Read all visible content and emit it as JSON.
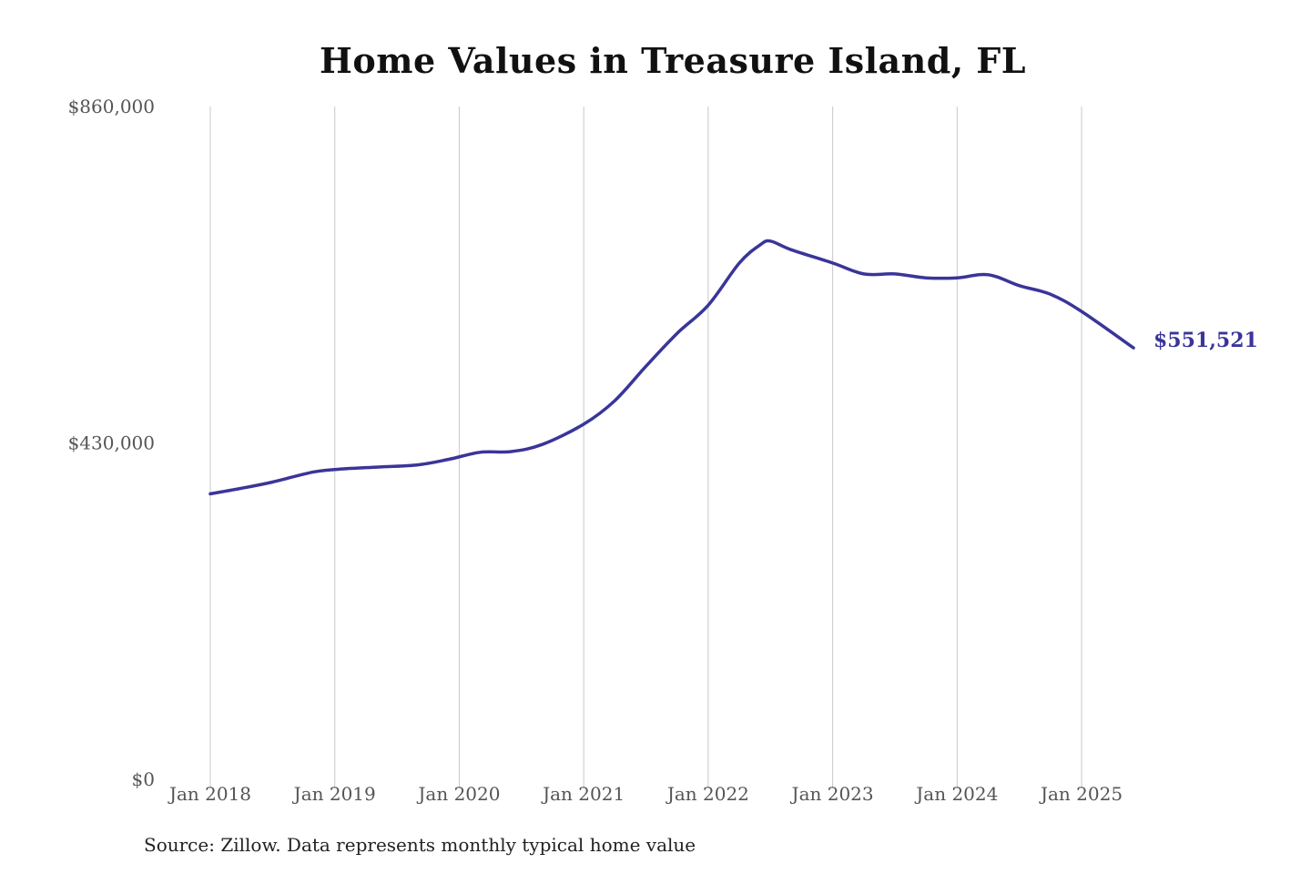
{
  "chart_data": {
    "type": "line",
    "title": "Home Values in Treasure Island, FL",
    "xlabel": "",
    "ylabel": "",
    "ylim": [
      0,
      860000
    ],
    "y_ticks": [
      {
        "value": 0,
        "label": "$0"
      },
      {
        "value": 430000,
        "label": "$430,000"
      },
      {
        "value": 860000,
        "label": "$860,000"
      }
    ],
    "x_range": [
      "2018-01",
      "2025-06"
    ],
    "x_ticks": [
      {
        "date": "2018-01",
        "label": "Jan 2018"
      },
      {
        "date": "2019-01",
        "label": "Jan 2019"
      },
      {
        "date": "2020-01",
        "label": "Jan 2020"
      },
      {
        "date": "2021-01",
        "label": "Jan 2021"
      },
      {
        "date": "2022-01",
        "label": "Jan 2022"
      },
      {
        "date": "2023-01",
        "label": "Jan 2023"
      },
      {
        "date": "2024-01",
        "label": "Jan 2024"
      },
      {
        "date": "2025-01",
        "label": "Jan 2025"
      }
    ],
    "grid": "vertical",
    "series": [
      {
        "color": "#3a3599",
        "end_label": "$551,521",
        "points": [
          {
            "x": "2018-01",
            "y": 365000
          },
          {
            "x": "2018-04",
            "y": 372000
          },
          {
            "x": "2018-07",
            "y": 380000
          },
          {
            "x": "2018-11",
            "y": 393000
          },
          {
            "x": "2019-02",
            "y": 397000
          },
          {
            "x": "2019-05",
            "y": 399000
          },
          {
            "x": "2019-09",
            "y": 402000
          },
          {
            "x": "2019-12",
            "y": 409000
          },
          {
            "x": "2020-03",
            "y": 418000
          },
          {
            "x": "2020-06",
            "y": 419000
          },
          {
            "x": "2020-09",
            "y": 428000
          },
          {
            "x": "2021-01",
            "y": 454000
          },
          {
            "x": "2021-04",
            "y": 484000
          },
          {
            "x": "2021-07",
            "y": 528000
          },
          {
            "x": "2021-10",
            "y": 570000
          },
          {
            "x": "2022-01",
            "y": 606000
          },
          {
            "x": "2022-04",
            "y": 660000
          },
          {
            "x": "2022-06",
            "y": 683000
          },
          {
            "x": "2022-07",
            "y": 688000
          },
          {
            "x": "2022-09",
            "y": 677000
          },
          {
            "x": "2023-01",
            "y": 660000
          },
          {
            "x": "2023-04",
            "y": 646000
          },
          {
            "x": "2023-07",
            "y": 646000
          },
          {
            "x": "2023-10",
            "y": 641000
          },
          {
            "x": "2024-01",
            "y": 641000
          },
          {
            "x": "2024-04",
            "y": 645000
          },
          {
            "x": "2024-07",
            "y": 631000
          },
          {
            "x": "2024-10",
            "y": 620000
          },
          {
            "x": "2025-01",
            "y": 598000
          },
          {
            "x": "2025-06",
            "y": 551521
          }
        ]
      }
    ]
  },
  "source_note": "Source: Zillow. Data represents monthly typical home value"
}
